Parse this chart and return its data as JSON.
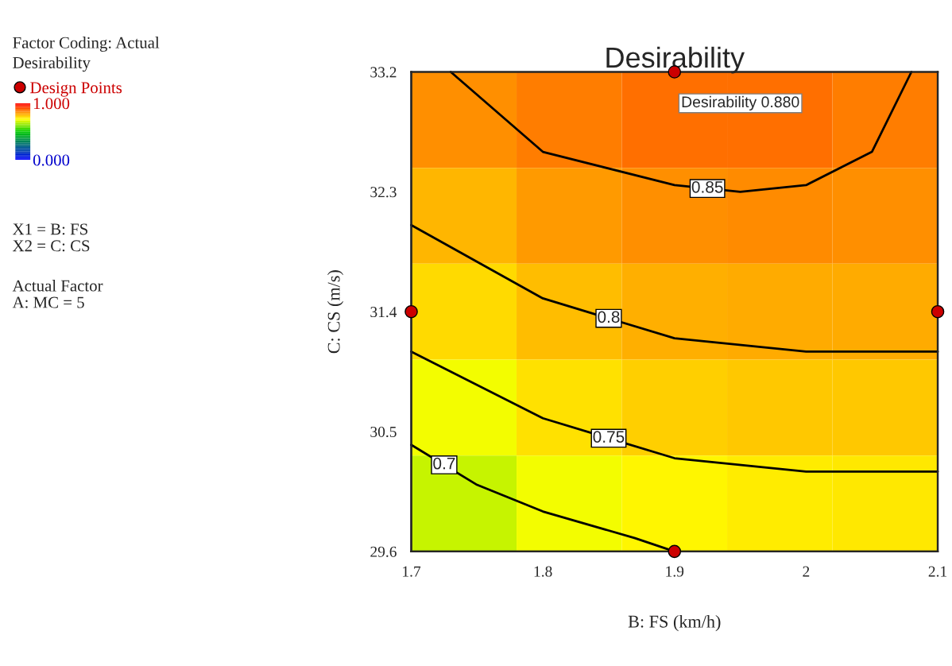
{
  "chart_data": [
    {
      "type": "heatmap",
      "clabel": "Desirability",
      "categories": [
        null,
        null,
        null,
        null,
        null
      ],
      "y_categories": [
        null,
        null,
        null,
        null,
        null
      ],
      "cells": [
        [
          0.84,
          0.86,
          0.875,
          0.875,
          0.86
        ],
        [
          0.8,
          0.83,
          0.84,
          0.845,
          0.84
        ],
        [
          0.76,
          0.79,
          0.805,
          0.81,
          0.81
        ],
        [
          0.71,
          0.75,
          0.77,
          0.78,
          0.78
        ],
        [
          0.67,
          0.71,
          0.73,
          0.74,
          0.745
        ]
      ],
      "clim": [
        0,
        1
      ],
      "cticks": [
        {
          "value": 0,
          "label": "0.000"
        },
        {
          "value": 1,
          "label": "1.000"
        }
      ]
    },
    {
      "type": "line",
      "title": "Desirability",
      "xlabel": "B: FS (km/h)",
      "ylabel": "C: CS (m/s)",
      "xlim": [
        1.7,
        2.1
      ],
      "xticks": [
        1.7,
        1.8,
        1.9,
        2,
        2.1
      ],
      "ylim": [
        29.6,
        33.2
      ],
      "yticks": [
        29.6,
        30.5,
        31.4,
        32.3,
        33.2
      ],
      "series": [
        {
          "name": "0.85",
          "color": "#000000",
          "x": [
            1.73,
            1.8,
            1.9,
            1.95,
            2.0,
            2.05,
            2.08
          ],
          "values": [
            33.2,
            32.6,
            32.35,
            32.3,
            32.35,
            32.6,
            33.2
          ]
        },
        {
          "name": "0.8",
          "color": "#000000",
          "x": [
            1.7,
            1.8,
            1.9,
            2.0,
            2.1
          ],
          "values": [
            32.05,
            31.5,
            31.2,
            31.1,
            31.1
          ]
        },
        {
          "name": "0.75",
          "color": "#000000",
          "x": [
            1.7,
            1.8,
            1.9,
            2.0,
            2.1
          ],
          "values": [
            31.1,
            30.6,
            30.3,
            30.2,
            30.2
          ]
        },
        {
          "name": "0.7",
          "color": "#000000",
          "x": [
            1.7,
            1.75,
            1.8,
            1.87,
            1.9
          ],
          "values": [
            30.4,
            30.1,
            29.9,
            29.7,
            29.6
          ]
        },
        {
          "name": "Design Points",
          "type": "scatter",
          "marker": "circle",
          "color": "#cc0000",
          "x": [
            1.7,
            2.1,
            1.9,
            1.9
          ],
          "values": [
            31.4,
            31.4,
            33.2,
            29.6
          ]
        }
      ],
      "legend": "left",
      "grid": false,
      "annotations": [
        {
          "text": "Desirability 0.880",
          "x": 1.9,
          "y": 33.2
        },
        "Factor Coding: Actual",
        "X1 = B: FS",
        "X2 = C: CS",
        "Actual Factor",
        "A: MC = 5"
      ]
    }
  ]
}
